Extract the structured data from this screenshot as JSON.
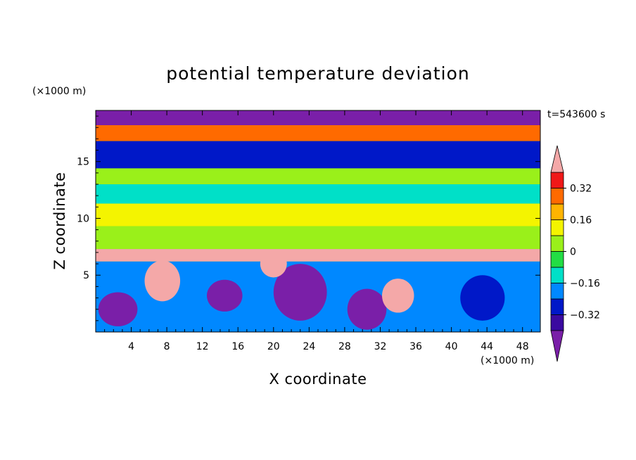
{
  "chart_data": {
    "type": "heatmap",
    "title": "potential temperature deviation",
    "xlabel": "X coordinate",
    "ylabel": "Z coordinate",
    "x_unit": "(×1000 m)",
    "y_unit": "(×1000 m)",
    "time_label": "t=543600 s",
    "xlim": [
      0,
      50
    ],
    "ylim": [
      0,
      19.5
    ],
    "x_ticks": [
      4,
      8,
      12,
      16,
      20,
      24,
      28,
      32,
      36,
      40,
      44,
      48
    ],
    "y_ticks": [
      5,
      10,
      15
    ],
    "colorbar": {
      "levels": [
        -0.4,
        -0.32,
        -0.24,
        -0.16,
        -0.08,
        0,
        0.08,
        0.16,
        0.24,
        0.32,
        0.4
      ],
      "labels": [
        "0.32",
        "0.16",
        "0",
        "−0.16",
        "−0.32"
      ],
      "label_values": [
        0.32,
        0.16,
        0,
        -0.16,
        -0.32
      ],
      "colors": [
        "#7a1fa8",
        "#3a0aa0",
        "#0018c8",
        "#0088ff",
        "#00e0c8",
        "#22dd44",
        "#9af01a",
        "#f4f400",
        "#ffb400",
        "#ff6a00",
        "#f01818",
        "#f4a8a8"
      ],
      "extend": "both"
    },
    "bands": [
      {
        "z": [
          18.2,
          19.5
        ],
        "value": -0.45
      },
      {
        "z": [
          16.8,
          18.2
        ],
        "value": 0.25
      },
      {
        "z": [
          14.4,
          16.8
        ],
        "value": -0.3
      },
      {
        "z": [
          13.0,
          14.4
        ],
        "value": 0.05
      },
      {
        "z": [
          11.3,
          13.0
        ],
        "value": -0.1
      },
      {
        "z": [
          9.3,
          11.3
        ],
        "value": 0.14
      },
      {
        "z": [
          7.3,
          9.3
        ],
        "value": 0.03
      },
      {
        "z": [
          6.2,
          7.3
        ],
        "value": 0.42
      },
      {
        "z": [
          0,
          6.2
        ],
        "value": -0.2
      }
    ],
    "features": [
      {
        "x": 2.5,
        "z": 2.0,
        "rx": 2.2,
        "rz": 1.5,
        "value": -0.45
      },
      {
        "x": 7.5,
        "z": 4.5,
        "rx": 2.0,
        "rz": 1.8,
        "value": 0.42
      },
      {
        "x": 14.5,
        "z": 3.2,
        "rx": 2.0,
        "rz": 1.4,
        "value": -0.45
      },
      {
        "x": 23.0,
        "z": 3.5,
        "rx": 3.0,
        "rz": 2.5,
        "value": -0.45
      },
      {
        "x": 30.5,
        "z": 2.0,
        "rx": 2.2,
        "rz": 1.8,
        "value": -0.45
      },
      {
        "x": 34.0,
        "z": 3.2,
        "rx": 1.8,
        "rz": 1.5,
        "value": 0.42
      },
      {
        "x": 43.5,
        "z": 3.0,
        "rx": 2.5,
        "rz": 2.0,
        "value": -0.3
      },
      {
        "x": 20.0,
        "z": 6.0,
        "rx": 1.5,
        "rz": 1.2,
        "value": 0.42
      }
    ]
  }
}
